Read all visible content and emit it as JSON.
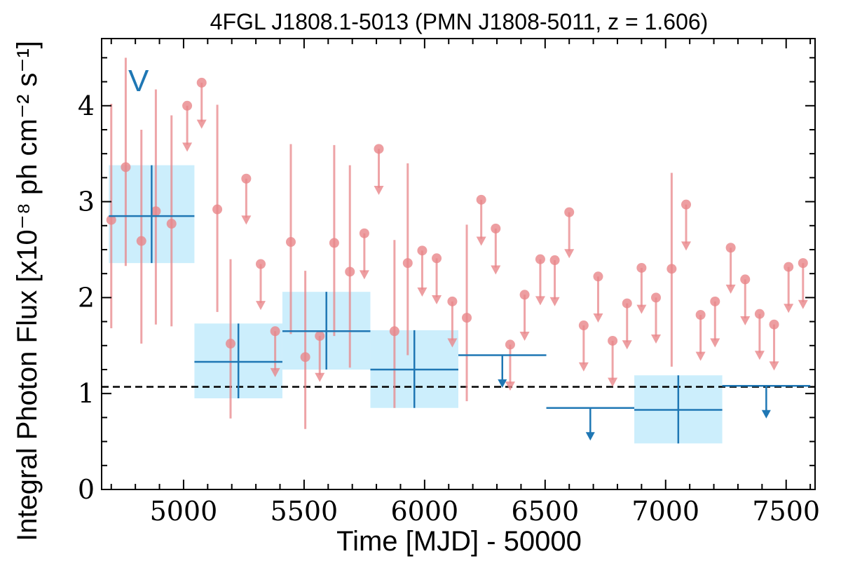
{
  "chart_data": {
    "type": "scatter",
    "title": "4FGL J1808.1-5013 (PMN J1808-5011, z = 1.606)",
    "xlabel": "Time [MJD] - 50000",
    "ylabel": "Integral Photon Flux [x10⁻⁸ ph cm⁻² s⁻¹]",
    "band_label": "V",
    "xlim": [
      4660,
      7620
    ],
    "ylim": [
      0,
      4.7
    ],
    "x_ticks": [
      5000,
      5500,
      6000,
      6500,
      7000,
      7500
    ],
    "y_ticks": [
      0,
      1,
      2,
      3,
      4
    ],
    "reference_level": 1.07,
    "colors": {
      "short_bins": "#e8868a",
      "long_bins": "#1f77b4",
      "long_band": "#cceefc",
      "reference": "#000000"
    },
    "series": [
      {
        "role": "short-bin-detections",
        "points": [
          {
            "x": 4700,
            "y": 2.81,
            "lo": 1.68,
            "hi": 4.02
          },
          {
            "x": 4760,
            "y": 3.36,
            "lo": 2.33,
            "hi": 4.5
          },
          {
            "x": 4825,
            "y": 2.59,
            "lo": 1.52,
            "hi": 3.75
          },
          {
            "x": 4885,
            "y": 2.9,
            "lo": 1.72,
            "hi": 4.17
          },
          {
            "x": 4950,
            "y": 2.77,
            "lo": 1.7,
            "hi": 3.9
          },
          {
            "x": 5140,
            "y": 2.92,
            "lo": 1.85,
            "hi": 4.01
          },
          {
            "x": 5195,
            "y": 1.52,
            "lo": 0.74,
            "hi": 2.4
          },
          {
            "x": 5445,
            "y": 2.58,
            "lo": 1.62,
            "hi": 3.6
          },
          {
            "x": 5505,
            "y": 1.38,
            "lo": 0.63,
            "hi": 2.28
          },
          {
            "x": 5625,
            "y": 2.57,
            "lo": 1.6,
            "hi": 3.59
          },
          {
            "x": 5690,
            "y": 2.27,
            "lo": 1.27,
            "hi": 3.38
          },
          {
            "x": 5875,
            "y": 1.65,
            "lo": 0.85,
            "hi": 2.6
          },
          {
            "x": 5930,
            "y": 2.36,
            "lo": 1.4,
            "hi": 3.4
          },
          {
            "x": 6175,
            "y": 1.79,
            "lo": 0.92,
            "hi": 2.76
          },
          {
            "x": 7025,
            "y": 2.3,
            "lo": 1.28,
            "hi": 3.3
          }
        ]
      },
      {
        "role": "short-bin-upper-limits",
        "points": [
          {
            "x": 5015,
            "y": 4.0
          },
          {
            "x": 5075,
            "y": 4.24
          },
          {
            "x": 5260,
            "y": 3.24
          },
          {
            "x": 5320,
            "y": 2.35
          },
          {
            "x": 5380,
            "y": 1.65
          },
          {
            "x": 5565,
            "y": 1.6
          },
          {
            "x": 5750,
            "y": 2.67
          },
          {
            "x": 5810,
            "y": 3.55
          },
          {
            "x": 5990,
            "y": 2.49
          },
          {
            "x": 6050,
            "y": 2.41
          },
          {
            "x": 6115,
            "y": 1.96
          },
          {
            "x": 6235,
            "y": 3.02
          },
          {
            "x": 6295,
            "y": 2.72
          },
          {
            "x": 6355,
            "y": 1.51
          },
          {
            "x": 6415,
            "y": 2.03
          },
          {
            "x": 6480,
            "y": 2.4
          },
          {
            "x": 6540,
            "y": 2.39
          },
          {
            "x": 6600,
            "y": 2.89
          },
          {
            "x": 6660,
            "y": 1.71
          },
          {
            "x": 6720,
            "y": 2.22
          },
          {
            "x": 6780,
            "y": 1.55
          },
          {
            "x": 6840,
            "y": 1.94
          },
          {
            "x": 6900,
            "y": 2.31
          },
          {
            "x": 6960,
            "y": 2.0
          },
          {
            "x": 7085,
            "y": 2.97
          },
          {
            "x": 7145,
            "y": 1.82
          },
          {
            "x": 7205,
            "y": 1.96
          },
          {
            "x": 7270,
            "y": 2.52
          },
          {
            "x": 7330,
            "y": 2.19
          },
          {
            "x": 7390,
            "y": 1.83
          },
          {
            "x": 7450,
            "y": 1.72
          },
          {
            "x": 7510,
            "y": 2.32
          },
          {
            "x": 7570,
            "y": 2.36
          }
        ]
      },
      {
        "role": "long-bin-detections",
        "bins": [
          {
            "x0": 4690,
            "x1": 5045,
            "y": 2.85,
            "lo": 2.36,
            "hi": 3.38
          },
          {
            "x0": 5045,
            "x1": 5410,
            "y": 1.33,
            "lo": 0.95,
            "hi": 1.73
          },
          {
            "x0": 5410,
            "x1": 5775,
            "y": 1.65,
            "lo": 1.25,
            "hi": 2.06
          },
          {
            "x0": 5775,
            "x1": 6140,
            "y": 1.25,
            "lo": 0.85,
            "hi": 1.66
          },
          {
            "x0": 6870,
            "x1": 7235,
            "y": 0.83,
            "lo": 0.48,
            "hi": 1.19
          }
        ]
      },
      {
        "role": "long-bin-upper-limits",
        "bins": [
          {
            "x0": 6140,
            "x1": 6505,
            "y": 1.4
          },
          {
            "x0": 6505,
            "x1": 6870,
            "y": 0.85
          },
          {
            "x0": 7235,
            "x1": 7600,
            "y": 1.08
          }
        ]
      }
    ]
  }
}
